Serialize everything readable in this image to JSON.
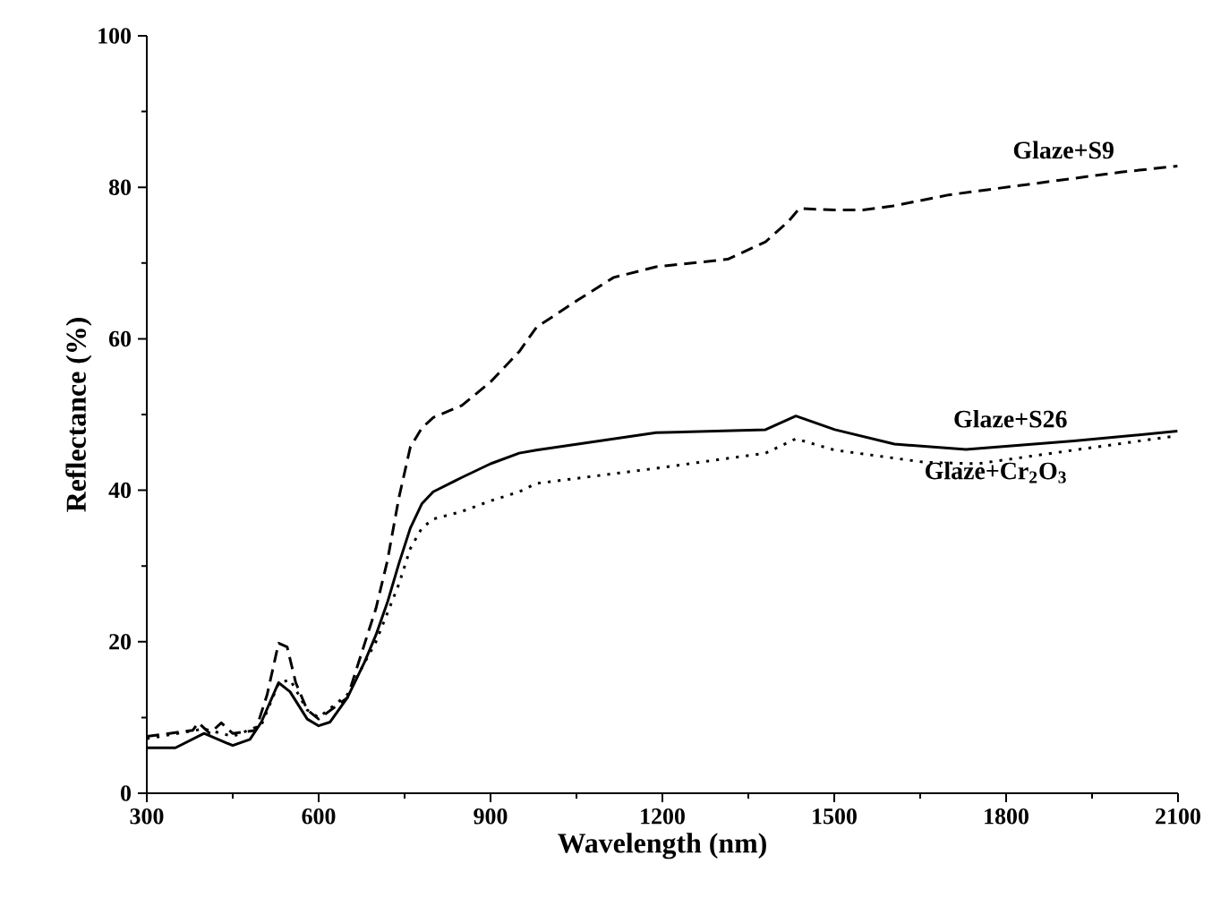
{
  "chart_data": {
    "type": "line",
    "xlabel": "Wavelength (nm)",
    "ylabel": "Reflectance (%)",
    "xlim": [
      300,
      2100
    ],
    "ylim": [
      0,
      100
    ],
    "xticks": [
      300,
      600,
      900,
      1200,
      1500,
      1800,
      2100
    ],
    "yticks": [
      0,
      20,
      40,
      60,
      80,
      100
    ],
    "grid": false,
    "legend": false,
    "marker": "none",
    "series": [
      {
        "name": "Glaze+S9",
        "color": "#000000",
        "line_style": "dashed",
        "x": [
          300,
          380,
          390,
          410,
          430,
          450,
          490,
          510,
          530,
          545,
          560,
          580,
          600,
          650,
          680,
          700,
          720,
          740,
          760,
          780,
          800,
          850,
          900,
          950,
          980,
          1050,
          1115,
          1189,
          1314,
          1380,
          1420,
          1439,
          1500,
          1550,
          1600,
          1700,
          1800,
          1900,
          2000,
          2099
        ],
        "values": [
          7.5,
          8.3,
          9.3,
          7.9,
          9.3,
          7.9,
          8.3,
          13,
          19.8,
          19.3,
          14.6,
          11,
          9.8,
          12.6,
          19.7,
          24.4,
          30.7,
          39,
          45.7,
          48.2,
          49.6,
          51.2,
          54.3,
          58.3,
          61.5,
          65,
          68.1,
          69.5,
          70.5,
          72.8,
          75.5,
          77.2,
          77,
          77,
          77.5,
          79,
          80,
          81,
          82,
          82.8
        ]
      },
      {
        "name": "Glaze+S26",
        "color": "#000000",
        "line_style": "solid",
        "x": [
          300,
          350,
          400,
          450,
          480,
          500,
          530,
          550,
          580,
          600,
          620,
          650,
          680,
          700,
          720,
          740,
          760,
          780,
          800,
          850,
          900,
          950,
          980,
          1189,
          1380,
          1433,
          1501,
          1605,
          1730,
          1918,
          2099
        ],
        "values": [
          6,
          6,
          7.9,
          6.3,
          7.1,
          9.4,
          14.6,
          13.4,
          9.8,
          8.9,
          9.4,
          12.6,
          17.3,
          20.9,
          25.2,
          30.3,
          35,
          38.2,
          39.8,
          41.7,
          43.5,
          44.9,
          45.3,
          47.6,
          48,
          49.8,
          48,
          46.1,
          45.4,
          46.5,
          47.8
        ]
      },
      {
        "name": "Glaze+Cr$_{2}$O$_{3}$",
        "color": "#000000",
        "line_style": "dotted",
        "x": [
          300,
          400,
          450,
          500,
          530,
          550,
          580,
          600,
          650,
          700,
          740,
          760,
          780,
          800,
          850,
          900,
          950,
          980,
          1189,
          1380,
          1433,
          1501,
          1657,
          1750,
          1918,
          2099
        ],
        "values": [
          7.2,
          8.5,
          7.5,
          9,
          14.5,
          15,
          11,
          10,
          13,
          20,
          27.6,
          32.3,
          35,
          36.2,
          37.2,
          38.6,
          39.8,
          40.9,
          42.9,
          44.9,
          46.8,
          45.3,
          43.7,
          43.5,
          45.3,
          47.2
        ]
      }
    ]
  }
}
